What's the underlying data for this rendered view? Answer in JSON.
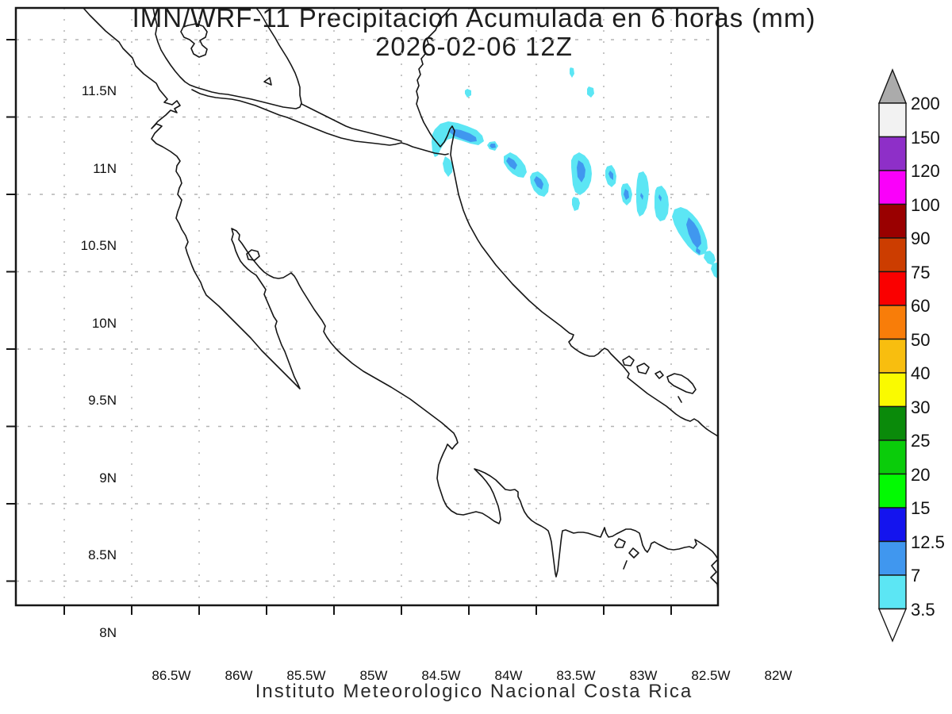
{
  "title": {
    "line1": "IMN/WRF-11 Precipitacion Acumulada en 6 horas (mm)",
    "line2": "2026-02-06 12Z"
  },
  "footer": {
    "text": "Instituto Meteorologico Nacional Costa Rica"
  },
  "axes": {
    "lat_labels": [
      "11.5N",
      "11N",
      "10.5N",
      "10N",
      "9.5N",
      "9N",
      "8.5N",
      "8N"
    ],
    "lon_labels": [
      "86.5W",
      "86W",
      "85.5W",
      "85W",
      "84.5W",
      "84W",
      "83.5W",
      "83W",
      "82.5W",
      "82W"
    ]
  },
  "colorbar": {
    "labels_top_to_bottom": [
      "200",
      "150",
      "120",
      "100",
      "90",
      "75",
      "60",
      "50",
      "40",
      "30",
      "25",
      "20",
      "15",
      "12.5",
      "7",
      "3.5"
    ],
    "segment_colors_top_to_bottom": [
      "#f2f2f2",
      "#8e2fc8",
      "#fa00fa",
      "#9a0000",
      "#cc3d00",
      "#fa0000",
      "#f87d09",
      "#f8be0f",
      "#fafa00",
      "#0a8a0a",
      "#0acc0a",
      "#02fa02",
      "#1414ee",
      "#4097ef",
      "#5ce6f4"
    ],
    "arrow_top_color": "#ababab",
    "arrow_bottom_color": "#ffffff"
  },
  "map": {
    "precip_light_color": "#5ce6f4",
    "precip_medium_color": "#4097ef",
    "coast_color": "#161616"
  },
  "chart_data": {
    "type": "heatmap",
    "title": "IMN/WRF-11 Precipitacion Acumulada en 6 horas (mm)",
    "valid_time": "2026-02-06 12Z",
    "x_ticks_lon": [
      "86.5W",
      "86W",
      "85.5W",
      "85W",
      "84.5W",
      "84W",
      "83.5W",
      "83W",
      "82.5W",
      "82W"
    ],
    "y_ticks_lat": [
      "11.5N",
      "11N",
      "10.5N",
      "10N",
      "9.5N",
      "9N",
      "8.5N",
      "8N"
    ],
    "colorbar_levels_mm": [
      3.5,
      7,
      12.5,
      15,
      20,
      25,
      30,
      40,
      50,
      60,
      75,
      90,
      100,
      120,
      150,
      200
    ],
    "precip_cells_lon_lat_band_mm": [
      [
        -83.63,
        10.85,
        "7-12.5"
      ],
      [
        -83.35,
        10.78,
        "3.5-7"
      ],
      [
        -83.2,
        10.68,
        "7-12.5"
      ],
      [
        -83.0,
        10.55,
        "7-12.5"
      ],
      [
        -82.7,
        10.65,
        "7-12.5"
      ],
      [
        -82.45,
        10.55,
        "7-12.5"
      ],
      [
        -82.35,
        10.45,
        "3.5-7"
      ],
      [
        -82.25,
        10.48,
        "3.5-7"
      ],
      [
        -82.1,
        10.42,
        "3.5-7"
      ],
      [
        -81.85,
        10.25,
        "7-12.5"
      ],
      [
        -81.7,
        10.0,
        "3.5-7"
      ],
      [
        -82.75,
        11.28,
        "3.5-7"
      ],
      [
        -82.6,
        11.15,
        "3.5-7"
      ],
      [
        -83.5,
        11.2,
        "3.5-7"
      ]
    ],
    "precip_description": "NW-SE chain of light convective precipitation cells over the Caribbean offshore waters from the Nicaragua/Costa Rica coast toward Bocas del Toro; light band 3.5-7 mm with embedded 7-12.5 mm cores. No precipitation over land."
  }
}
